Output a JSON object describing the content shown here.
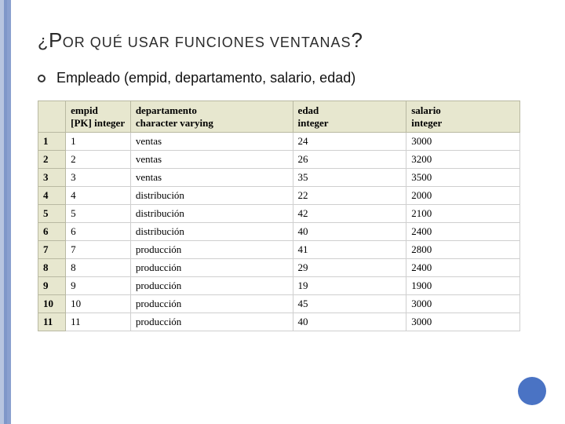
{
  "stripes": [
    "#b7c5e0",
    "#7f97c9",
    "#8aa0cf"
  ],
  "title": {
    "q_open": "¿",
    "cap1": "P",
    "word1_rest": "OR QUÉ USAR FUNCIONES VENTANAS",
    "q_close": "?"
  },
  "bullet_text": "Empleado (empid, departamento, salario, edad)",
  "table": {
    "columns": [
      {
        "line1": "",
        "line2": ""
      },
      {
        "line1": "empid",
        "line2": "[PK] integer"
      },
      {
        "line1": "departamento",
        "line2": "character varying"
      },
      {
        "line1": "edad",
        "line2": "integer"
      },
      {
        "line1": "salario",
        "line2": "integer"
      }
    ],
    "col_widths": [
      "34px",
      "80px",
      "200px",
      "140px",
      "140px"
    ],
    "rows": [
      [
        "1",
        "1",
        "ventas",
        "24",
        "3000"
      ],
      [
        "2",
        "2",
        "ventas",
        "26",
        "3200"
      ],
      [
        "3",
        "3",
        "ventas",
        "35",
        "3500"
      ],
      [
        "4",
        "4",
        "distribución",
        "22",
        "2000"
      ],
      [
        "5",
        "5",
        "distribución",
        "42",
        "2100"
      ],
      [
        "6",
        "6",
        "distribución",
        "40",
        "2400"
      ],
      [
        "7",
        "7",
        "producción",
        "41",
        "2800"
      ],
      [
        "8",
        "8",
        "producción",
        "29",
        "2400"
      ],
      [
        "9",
        "9",
        "producción",
        "19",
        "1900"
      ],
      [
        "10",
        "10",
        "producción",
        "45",
        "3000"
      ],
      [
        "11",
        "11",
        "producción",
        "40",
        "3000"
      ]
    ]
  },
  "accent_color": "#4a73c4"
}
